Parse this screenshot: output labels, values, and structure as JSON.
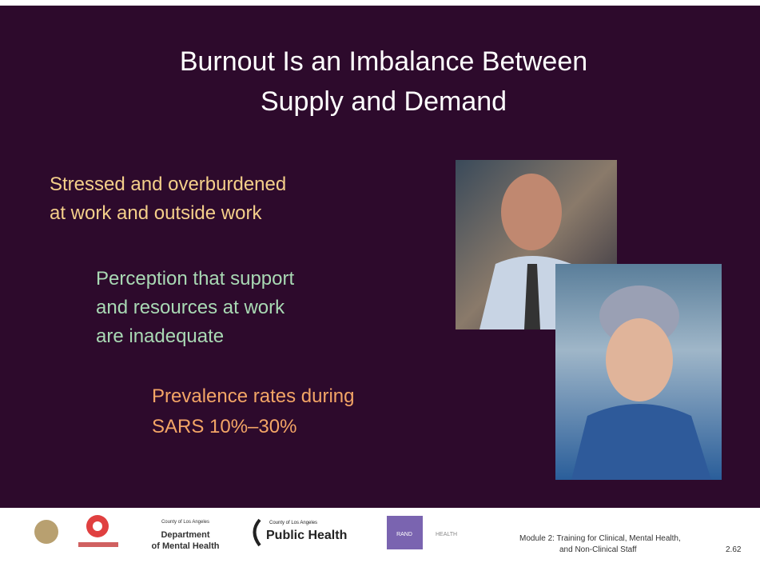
{
  "slide": {
    "title": [
      "Burnout Is an Imbalance Between",
      "Supply and Demand"
    ],
    "bullets": [
      {
        "lines": [
          "Stressed and overburdened",
          "at work and outside work"
        ]
      },
      {
        "lines": [
          "Perception that support",
          "and resources at work",
          "are inadequate"
        ]
      },
      {
        "lines": [
          "Prevalence rates during",
          "SARS 10%–30%"
        ]
      }
    ]
  },
  "footer": {
    "logos": {
      "dmh_county": "County of Los Angeles",
      "dmh_line1": "Department",
      "dmh_line2": "of Mental Health",
      "ph_county": "County of Los Angeles",
      "ph_name": "Public Health",
      "rand": "RAND",
      "rand_health": "HEALTH"
    },
    "module": [
      "Module 2:  Training for Clinical, Mental Health,",
      "and Non-Clinical Staff"
    ],
    "page": "2.62"
  }
}
